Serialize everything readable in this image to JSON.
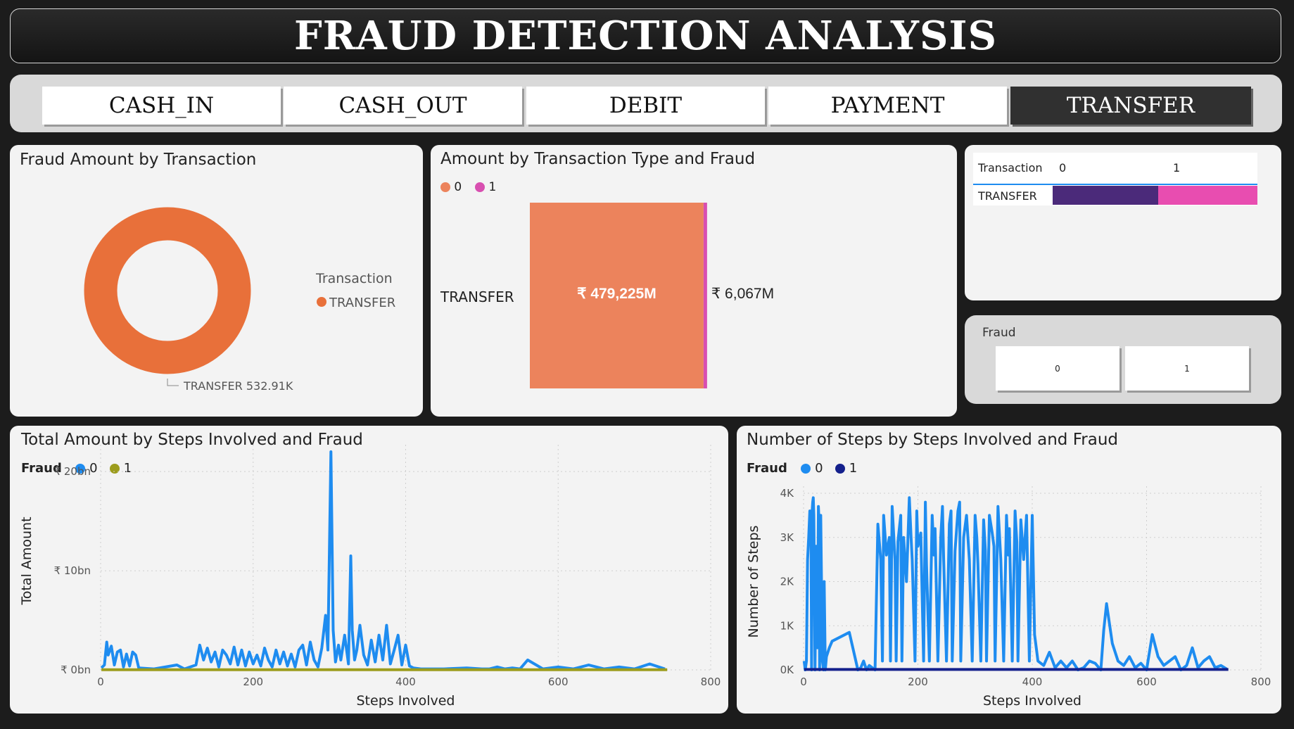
{
  "header": {
    "title": "FRAUD DETECTION ANALYSIS"
  },
  "slicer": {
    "options": [
      "CASH_IN",
      "CASH_OUT",
      "DEBIT",
      "PAYMENT",
      "TRANSFER"
    ],
    "selected": "TRANSFER"
  },
  "colors": {
    "donut": "#e8703a",
    "fraud0_bar": "#ec835c",
    "fraud1_bar": "#d84fb0",
    "matrix0": "#4b2a7a",
    "matrix1": "#e84db0",
    "line0": "#1e8cf0",
    "line_total1": "#9c9c1c",
    "line_steps1": "#14208c"
  },
  "donut_card": {
    "title": "Fraud Amount by Transaction",
    "legend_title": "Transaction",
    "legend_item": "TRANSFER",
    "data_label": "TRANSFER 532.91K",
    "chart_data": {
      "type": "pie",
      "categories": [
        "TRANSFER"
      ],
      "values": [
        532910
      ]
    }
  },
  "bar_card": {
    "title": "Amount by Transaction Type and Fraud",
    "legend": [
      "0",
      "1"
    ],
    "category_label": "TRANSFER",
    "label_0": "₹ 479,225M",
    "label_1": "₹ 6,067M",
    "chart_data": {
      "type": "bar",
      "categories": [
        "TRANSFER"
      ],
      "series": [
        {
          "name": "0",
          "values": [
            479225
          ]
        },
        {
          "name": "1",
          "values": [
            6067
          ]
        }
      ]
    }
  },
  "matrix_card": {
    "header": [
      "Transaction",
      "0",
      "1"
    ],
    "row_label": "TRANSFER"
  },
  "fraud_card": {
    "title": "Fraud",
    "options": [
      "0",
      "1"
    ]
  },
  "total_amount_card": {
    "title": "Total Amount by Steps Involved and Fraud",
    "legend_title": "Fraud",
    "legend": [
      "0",
      "1"
    ],
    "chart_data": {
      "type": "line",
      "xlabel": "Steps Involved",
      "ylabel": "Total Amount",
      "xlim": [
        0,
        800
      ],
      "ylim": [
        0,
        22
      ],
      "xticks": [
        "0",
        "200",
        "400",
        "600",
        "800"
      ],
      "yticks": [
        "₹ 0bn",
        "₹ 10bn",
        "₹ 20bn"
      ],
      "ytick_values": [
        0,
        10,
        20
      ],
      "series": [
        {
          "name": "0",
          "x": [
            1,
            5,
            8,
            10,
            14,
            18,
            22,
            26,
            30,
            34,
            38,
            42,
            46,
            50,
            70,
            100,
            110,
            125,
            130,
            135,
            140,
            145,
            150,
            155,
            160,
            165,
            170,
            175,
            180,
            185,
            190,
            195,
            200,
            205,
            210,
            215,
            220,
            225,
            230,
            235,
            240,
            245,
            250,
            255,
            260,
            265,
            270,
            275,
            280,
            285,
            290,
            295,
            298,
            302,
            305,
            308,
            312,
            315,
            320,
            325,
            328,
            330,
            333,
            336,
            340,
            345,
            350,
            355,
            360,
            365,
            370,
            375,
            380,
            385,
            390,
            395,
            400,
            405,
            410,
            420,
            450,
            480,
            500,
            510,
            520,
            530,
            540,
            550,
            560,
            580,
            600,
            620,
            640,
            660,
            680,
            700,
            720,
            740
          ],
          "y": [
            0.2,
            0.5,
            2.8,
            1.5,
            2.4,
            0.5,
            1.8,
            2.0,
            0.3,
            1.6,
            0.4,
            1.8,
            1.5,
            0.2,
            0.1,
            0.5,
            0.1,
            0.5,
            2.5,
            1.0,
            2.2,
            0.8,
            1.8,
            0.3,
            2.0,
            1.5,
            0.6,
            2.3,
            0.5,
            2.0,
            0.4,
            1.8,
            0.6,
            1.5,
            0.4,
            2.2,
            1.0,
            0.3,
            2.0,
            0.6,
            1.8,
            0.4,
            1.6,
            0.3,
            2.0,
            2.5,
            0.5,
            2.8,
            1.0,
            0.3,
            2.2,
            5.5,
            2.0,
            22.0,
            4.0,
            0.8,
            2.5,
            1.0,
            3.5,
            0.6,
            11.5,
            4.0,
            1.0,
            2.0,
            4.5,
            1.5,
            0.5,
            3.0,
            0.8,
            3.5,
            1.0,
            4.5,
            0.6,
            2.0,
            3.5,
            0.5,
            2.5,
            0.4,
            0.2,
            0.1,
            0.1,
            0.2,
            0.1,
            0.1,
            0.3,
            0.1,
            0.2,
            0.1,
            1.0,
            0.1,
            0.3,
            0.1,
            0.5,
            0.1,
            0.3,
            0.1,
            0.6,
            0.1
          ]
        },
        {
          "name": "1",
          "x": [
            1,
            743
          ],
          "y": [
            0.02,
            0.02
          ]
        }
      ]
    }
  },
  "steps_card": {
    "title": "Number of Steps by Steps Involved and Fraud",
    "legend_title": "Fraud",
    "legend": [
      "0",
      "1"
    ],
    "chart_data": {
      "type": "line",
      "xlabel": "Steps Involved",
      "ylabel": "Number of Steps",
      "xlim": [
        0,
        800
      ],
      "ylim": [
        0,
        4000
      ],
      "xticks": [
        "0",
        "200",
        "400",
        "600",
        "800"
      ],
      "yticks": [
        "0K",
        "1K",
        "2K",
        "3K",
        "4K"
      ],
      "ytick_values": [
        0,
        1000,
        2000,
        3000,
        4000
      ],
      "series": [
        {
          "name": "0",
          "x": [
            1,
            3,
            5,
            7,
            9,
            11,
            13,
            14,
            15,
            16,
            17,
            18,
            20,
            22,
            24,
            25,
            26,
            27,
            28,
            30,
            33,
            35,
            36,
            38,
            40,
            45,
            50,
            80,
            95,
            100,
            105,
            110,
            115,
            125,
            130,
            135,
            138,
            140,
            145,
            150,
            152,
            155,
            160,
            162,
            165,
            170,
            172,
            175,
            180,
            185,
            188,
            190,
            195,
            198,
            200,
            205,
            210,
            213,
            215,
            220,
            225,
            228,
            230,
            235,
            240,
            243,
            245,
            250,
            255,
            258,
            260,
            265,
            270,
            273,
            275,
            280,
            285,
            290,
            295,
            300,
            303,
            305,
            310,
            315,
            318,
            320,
            325,
            330,
            333,
            335,
            340,
            345,
            350,
            355,
            358,
            360,
            365,
            370,
            373,
            375,
            380,
            385,
            390,
            395,
            400,
            404,
            410,
            420,
            430,
            440,
            450,
            460,
            470,
            480,
            490,
            500,
            510,
            520,
            525,
            530,
            540,
            550,
            560,
            570,
            580,
            590,
            600,
            610,
            620,
            630,
            640,
            650,
            660,
            670,
            680,
            690,
            700,
            710,
            720,
            730,
            740
          ],
          "y": [
            200,
            0,
            200,
            2500,
            3000,
            3600,
            3300,
            0,
            3600,
            3800,
            3900,
            3500,
            0,
            2800,
            500,
            2000,
            3700,
            3400,
            0,
            3500,
            200,
            0,
            2000,
            0,
            300,
            500,
            650,
            850,
            0,
            50,
            200,
            0,
            100,
            0,
            3300,
            2500,
            200,
            3500,
            2600,
            3000,
            200,
            3700,
            2500,
            200,
            2900,
            3500,
            200,
            3000,
            2000,
            3900,
            3000,
            2500,
            200,
            3600,
            2800,
            3100,
            200,
            3800,
            2400,
            200,
            3500,
            2600,
            3200,
            200,
            3000,
            3700,
            2500,
            200,
            3300,
            3600,
            200,
            2700,
            3600,
            3800,
            200,
            3000,
            3500,
            2500,
            200,
            3500,
            3000,
            2400,
            200,
            3400,
            2700,
            200,
            3500,
            3100,
            2800,
            200,
            3700,
            2500,
            200,
            3500,
            2600,
            3200,
            200,
            3600,
            2900,
            200,
            3400,
            2500,
            3500,
            200,
            3500,
            800,
            200,
            100,
            400,
            50,
            200,
            50,
            200,
            0,
            50,
            200,
            150,
            0,
            900,
            1500,
            600,
            200,
            100,
            300,
            50,
            150,
            0,
            800,
            300,
            100,
            200,
            300,
            0,
            100,
            500,
            50,
            200,
            300,
            50,
            100,
            20
          ]
        },
        {
          "name": "1",
          "x": [
            1,
            743
          ],
          "y": [
            10,
            10
          ]
        }
      ]
    }
  }
}
